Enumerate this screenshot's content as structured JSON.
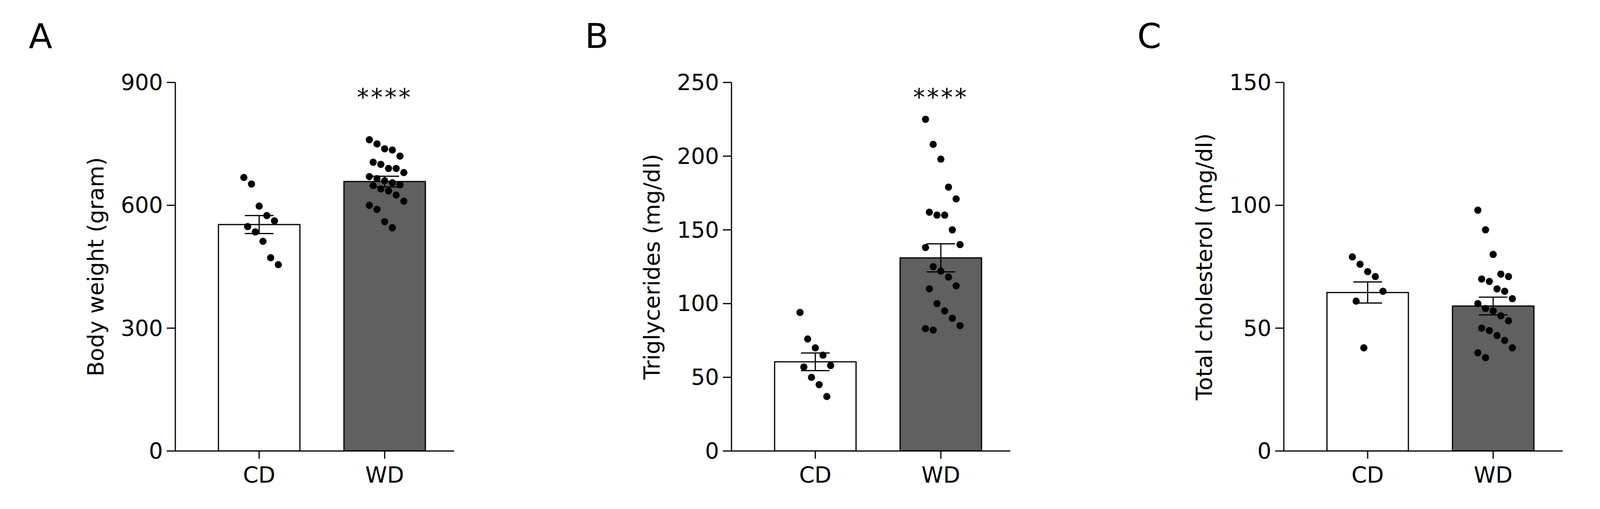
{
  "chart_data": [
    {
      "type": "bar",
      "title": "A",
      "y_label": "Body weight (gram)",
      "categories": [
        "CD",
        "WD"
      ],
      "values": [
        553,
        658
      ],
      "errors": [
        22,
        13
      ],
      "colors": [
        "#ffffff",
        "#606060"
      ],
      "points": [
        [
          668,
          652,
          598,
          575,
          562,
          548,
          535,
          512,
          472,
          455
        ],
        [
          760,
          750,
          738,
          735,
          720,
          705,
          700,
          690,
          690,
          680,
          670,
          665,
          660,
          655,
          650,
          648,
          640,
          635,
          625,
          610,
          600,
          590,
          560,
          545
        ]
      ],
      "ylim": [
        0,
        900
      ],
      "yticks": [
        0,
        300,
        600,
        900
      ],
      "annotations": [
        {
          "category": "WD",
          "text": "****"
        }
      ]
    },
    {
      "type": "bar",
      "title": "B",
      "y_label": "Triglycerides (mg/dl)",
      "categories": [
        "CD",
        "WD"
      ],
      "values": [
        60.5,
        131
      ],
      "errors": [
        6,
        9.5
      ],
      "colors": [
        "#ffffff",
        "#606060"
      ],
      "points": [
        [
          94,
          76,
          70,
          65,
          58,
          57,
          50,
          45,
          37
        ],
        [
          225,
          208,
          198,
          179,
          171,
          162,
          160,
          160,
          150,
          140,
          138,
          125,
          122,
          118,
          112,
          110,
          100,
          95,
          90,
          85,
          83,
          82
        ]
      ],
      "ylim": [
        0,
        250
      ],
      "yticks": [
        0,
        50,
        100,
        150,
        200,
        250
      ],
      "annotations": [
        {
          "category": "WD",
          "text": "****"
        }
      ]
    },
    {
      "type": "bar",
      "title": "C",
      "y_label": "Total cholesterol (mg/dl)",
      "categories": [
        "CD",
        "WD"
      ],
      "values": [
        64.5,
        59
      ],
      "errors": [
        4.3,
        3.6
      ],
      "colors": [
        "#ffffff",
        "#606060"
      ],
      "points": [
        [
          79,
          76,
          73,
          71,
          65,
          61,
          42
        ],
        [
          98,
          90,
          80,
          72,
          71,
          70,
          69,
          66,
          65,
          62,
          60,
          58,
          57,
          55,
          53,
          50,
          49,
          47,
          45,
          42,
          40,
          38
        ]
      ],
      "ylim": [
        0,
        150
      ],
      "yticks": [
        0,
        50,
        100,
        150
      ]
    }
  ]
}
